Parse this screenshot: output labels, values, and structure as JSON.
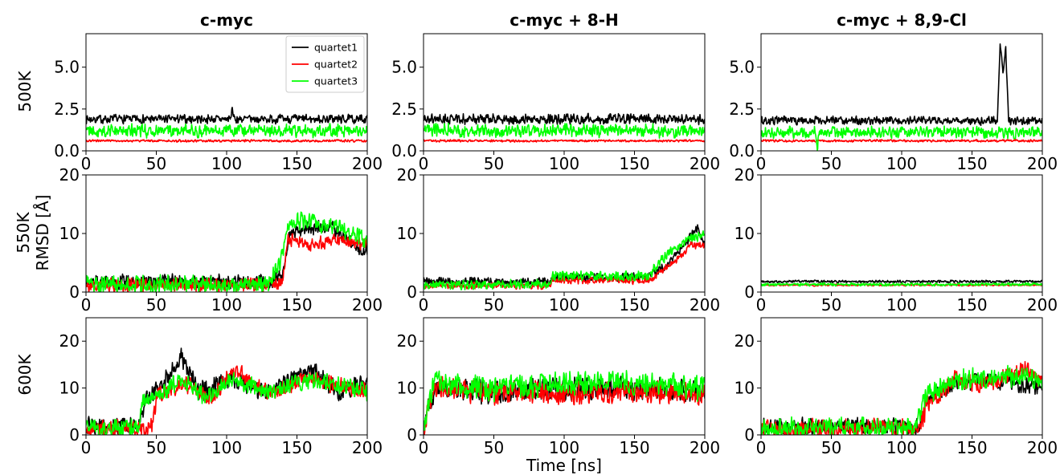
{
  "figure": {
    "column_titles": [
      "c-myc",
      "c-myc + 8-H",
      "c-myc + 8,9-Cl"
    ],
    "row_labels": [
      "500K",
      "550K",
      "600K"
    ],
    "ylabel": "RMSD [Å]",
    "xlabel": "Time [ns]"
  },
  "colors": {
    "quartet1": "#000000",
    "quartet2": "#ff0000",
    "quartet3": "#00ff00"
  },
  "legend": [
    {
      "label": "quartet1",
      "color": "#000000"
    },
    {
      "label": "quartet2",
      "color": "#ff0000"
    },
    {
      "label": "quartet3",
      "color": "#00ff00"
    }
  ],
  "chart_data": [
    {
      "type": "line",
      "title": "c-myc",
      "row": "500K",
      "xlim": [
        0,
        200
      ],
      "ylim": [
        0,
        7
      ],
      "xticks": [
        0,
        50,
        100,
        150,
        200
      ],
      "yticks": [
        0.0,
        2.5,
        5.0
      ],
      "ytick_labels": [
        "0.0",
        "2.5",
        "5.0"
      ],
      "legend": "top-right",
      "series": [
        {
          "name": "quartet1",
          "points": [
            [
              0,
              1.9
            ],
            [
              103,
              1.9
            ],
            [
              104,
              2.7
            ],
            [
              105,
              1.9
            ],
            [
              200,
              1.9
            ]
          ],
          "noise": 0.3
        },
        {
          "name": "quartet2",
          "points": [
            [
              0,
              0.6
            ],
            [
              200,
              0.6
            ]
          ],
          "noise": 0.08
        },
        {
          "name": "quartet3",
          "points": [
            [
              0,
              1.2
            ],
            [
              200,
              1.2
            ]
          ],
          "noise": 0.45
        }
      ]
    },
    {
      "type": "line",
      "title": "c-myc + 8-H",
      "row": "500K",
      "xlim": [
        0,
        200
      ],
      "ylim": [
        0,
        7
      ],
      "xticks": [
        0,
        50,
        100,
        150,
        200
      ],
      "yticks": [
        0.0,
        2.5,
        5.0
      ],
      "ytick_labels": [
        "0.0",
        "2.5",
        "5.0"
      ],
      "series": [
        {
          "name": "quartet1",
          "points": [
            [
              0,
              1.9
            ],
            [
              200,
              1.9
            ]
          ],
          "noise": 0.35
        },
        {
          "name": "quartet2",
          "points": [
            [
              0,
              0.6
            ],
            [
              200,
              0.6
            ]
          ],
          "noise": 0.08
        },
        {
          "name": "quartet3",
          "points": [
            [
              0,
              1.2
            ],
            [
              200,
              1.2
            ]
          ],
          "noise": 0.45
        }
      ]
    },
    {
      "type": "line",
      "title": "c-myc + 8,9-Cl",
      "row": "500K",
      "xlim": [
        0,
        200
      ],
      "ylim": [
        0,
        7
      ],
      "xticks": [
        0,
        50,
        100,
        150,
        200
      ],
      "yticks": [
        0.0,
        2.5,
        5.0
      ],
      "ytick_labels": [
        "0.0",
        "2.5",
        "5.0"
      ],
      "series": [
        {
          "name": "quartet1",
          "points": [
            [
              0,
              1.8
            ],
            [
              168,
              1.8
            ],
            [
              170,
              6.4
            ],
            [
              172,
              4.5
            ],
            [
              174,
              6.2
            ],
            [
              176,
              1.8
            ],
            [
              200,
              1.8
            ]
          ],
          "noise": 0.3
        },
        {
          "name": "quartet2",
          "points": [
            [
              0,
              0.6
            ],
            [
              200,
              0.6
            ]
          ],
          "noise": 0.08
        },
        {
          "name": "quartet3",
          "points": [
            [
              0,
              1.1
            ],
            [
              39,
              1.1
            ],
            [
              40,
              0.1
            ],
            [
              41,
              1.1
            ],
            [
              200,
              1.1
            ]
          ],
          "noise": 0.4
        }
      ]
    },
    {
      "type": "line",
      "title": "c-myc",
      "row": "550K",
      "xlim": [
        0,
        200
      ],
      "ylim": [
        0,
        20
      ],
      "xticks": [
        0,
        50,
        100,
        150,
        200
      ],
      "yticks": [
        0,
        10,
        20
      ],
      "ytick_labels": [
        "0",
        "10",
        "20"
      ],
      "series": [
        {
          "name": "quartet1",
          "points": [
            [
              0,
              1.8
            ],
            [
              130,
              1.8
            ],
            [
              140,
              3
            ],
            [
              145,
              10
            ],
            [
              160,
              11
            ],
            [
              175,
              11
            ],
            [
              190,
              8
            ],
            [
              200,
              7
            ]
          ],
          "noise": 1.4
        },
        {
          "name": "quartet2",
          "points": [
            [
              0,
              1.2
            ],
            [
              135,
              1.2
            ],
            [
              140,
              1.5
            ],
            [
              143,
              9
            ],
            [
              160,
              8
            ],
            [
              180,
              9
            ],
            [
              200,
              8
            ]
          ],
          "noise": 1.4
        },
        {
          "name": "quartet3",
          "points": [
            [
              0,
              1.3
            ],
            [
              130,
              1.3
            ],
            [
              138,
              5
            ],
            [
              145,
              12
            ],
            [
              160,
              12
            ],
            [
              180,
              11
            ],
            [
              200,
              9
            ]
          ],
          "noise": 1.8
        }
      ]
    },
    {
      "type": "line",
      "title": "c-myc + 8-H",
      "row": "550K",
      "xlim": [
        0,
        200
      ],
      "ylim": [
        0,
        20
      ],
      "xticks": [
        0,
        50,
        100,
        150,
        200
      ],
      "yticks": [
        0,
        10,
        20
      ],
      "ytick_labels": [
        "0",
        "10",
        "20"
      ],
      "series": [
        {
          "name": "quartet1",
          "points": [
            [
              0,
              1.8
            ],
            [
              90,
              1.8
            ],
            [
              91,
              2.5
            ],
            [
              160,
              2.6
            ],
            [
              175,
              5
            ],
            [
              185,
              8
            ],
            [
              195,
              11
            ],
            [
              200,
              8
            ]
          ],
          "noise": 0.8
        },
        {
          "name": "quartet2",
          "points": [
            [
              0,
              1.1
            ],
            [
              90,
              1.1
            ],
            [
              91,
              2.0
            ],
            [
              160,
              2.0
            ],
            [
              178,
              5
            ],
            [
              190,
              8
            ],
            [
              200,
              8
            ]
          ],
          "noise": 0.7
        },
        {
          "name": "quartet3",
          "points": [
            [
              0,
              1.3
            ],
            [
              90,
              1.3
            ],
            [
              91,
              2.8
            ],
            [
              160,
              2.8
            ],
            [
              175,
              7
            ],
            [
              190,
              9
            ],
            [
              200,
              10
            ]
          ],
          "noise": 1.0
        }
      ]
    },
    {
      "type": "line",
      "title": "c-myc + 8,9-Cl",
      "row": "550K",
      "xlim": [
        0,
        200
      ],
      "ylim": [
        0,
        20
      ],
      "xticks": [
        0,
        50,
        100,
        150,
        200
      ],
      "yticks": [
        0,
        10,
        20
      ],
      "ytick_labels": [
        "0",
        "10",
        "20"
      ],
      "series": [
        {
          "name": "quartet1",
          "points": [
            [
              0,
              1.8
            ],
            [
              200,
              1.8
            ]
          ],
          "noise": 0.25
        },
        {
          "name": "quartet2",
          "points": [
            [
              0,
              1.2
            ],
            [
              200,
              1.2
            ]
          ],
          "noise": 0.2
        },
        {
          "name": "quartet3",
          "points": [
            [
              0,
              1.3
            ],
            [
              200,
              1.3
            ]
          ],
          "noise": 0.3
        }
      ]
    },
    {
      "type": "line",
      "title": "c-myc",
      "row": "600K",
      "xlim": [
        0,
        200
      ],
      "ylim": [
        0,
        25
      ],
      "xticks": [
        0,
        50,
        100,
        150,
        200
      ],
      "yticks": [
        0,
        10,
        20
      ],
      "ytick_labels": [
        "0",
        "10",
        "20"
      ],
      "series": [
        {
          "name": "quartet1",
          "points": [
            [
              0,
              1.8
            ],
            [
              38,
              1.8
            ],
            [
              42,
              7
            ],
            [
              55,
              11
            ],
            [
              68,
              17
            ],
            [
              80,
              9
            ],
            [
              105,
              12
            ],
            [
              130,
              9
            ],
            [
              160,
              14
            ],
            [
              180,
              9
            ],
            [
              200,
              11
            ]
          ],
          "noise": 2.4
        },
        {
          "name": "quartet2",
          "points": [
            [
              0,
              1.3
            ],
            [
              42,
              1.3
            ],
            [
              48,
              3
            ],
            [
              50,
              8
            ],
            [
              70,
              11
            ],
            [
              90,
              8
            ],
            [
              105,
              14
            ],
            [
              130,
              9
            ],
            [
              160,
              12
            ],
            [
              200,
              9
            ]
          ],
          "noise": 2.2
        },
        {
          "name": "quartet3",
          "points": [
            [
              0,
              1.4
            ],
            [
              38,
              1.4
            ],
            [
              40,
              7
            ],
            [
              55,
              9
            ],
            [
              68,
              12
            ],
            [
              85,
              8
            ],
            [
              105,
              12
            ],
            [
              130,
              9
            ],
            [
              160,
              12
            ],
            [
              200,
              9
            ]
          ],
          "noise": 2.2
        }
      ]
    },
    {
      "type": "line",
      "title": "c-myc + 8-H",
      "row": "600K",
      "xlim": [
        0,
        200
      ],
      "ylim": [
        0,
        25
      ],
      "xticks": [
        0,
        50,
        100,
        150,
        200
      ],
      "yticks": [
        0,
        10,
        20
      ],
      "ytick_labels": [
        "0",
        "10",
        "20"
      ],
      "series": [
        {
          "name": "quartet1",
          "points": [
            [
              0,
              1
            ],
            [
              3,
              5
            ],
            [
              8,
              10
            ],
            [
              50,
              9
            ],
            [
              100,
              10
            ],
            [
              150,
              10
            ],
            [
              200,
              9
            ]
          ],
          "noise": 2.8
        },
        {
          "name": "quartet2",
          "points": [
            [
              0,
              1
            ],
            [
              4,
              6
            ],
            [
              8,
              10
            ],
            [
              50,
              9
            ],
            [
              100,
              9
            ],
            [
              150,
              9
            ],
            [
              200,
              9
            ]
          ],
          "noise": 2.8
        },
        {
          "name": "quartet3",
          "points": [
            [
              0,
              1
            ],
            [
              3,
              6
            ],
            [
              8,
              11
            ],
            [
              50,
              10
            ],
            [
              100,
              11
            ],
            [
              150,
              11
            ],
            [
              200,
              10
            ]
          ],
          "noise": 3.0
        }
      ]
    },
    {
      "type": "line",
      "title": "c-myc + 8,9-Cl",
      "row": "600K",
      "xlim": [
        0,
        200
      ],
      "ylim": [
        0,
        25
      ],
      "xticks": [
        0,
        50,
        100,
        150,
        200
      ],
      "yticks": [
        0,
        10,
        20
      ],
      "ytick_labels": [
        "0",
        "10",
        "20"
      ],
      "series": [
        {
          "name": "quartet1",
          "points": [
            [
              0,
              1.8
            ],
            [
              112,
              1.8
            ],
            [
              118,
              8
            ],
            [
              140,
              11
            ],
            [
              160,
              12
            ],
            [
              180,
              11
            ],
            [
              200,
              10
            ]
          ],
          "noise": 2.0
        },
        {
          "name": "quartet2",
          "points": [
            [
              0,
              1.3
            ],
            [
              113,
              1.3
            ],
            [
              118,
              7
            ],
            [
              140,
              12
            ],
            [
              160,
              11
            ],
            [
              185,
              14
            ],
            [
              200,
              11
            ]
          ],
          "noise": 2.4
        },
        {
          "name": "quartet3",
          "points": [
            [
              0,
              1.4
            ],
            [
              110,
              1.4
            ],
            [
              116,
              8
            ],
            [
              140,
              12
            ],
            [
              160,
              12
            ],
            [
              190,
              13
            ],
            [
              200,
              10
            ]
          ],
          "noise": 2.6
        }
      ]
    }
  ]
}
